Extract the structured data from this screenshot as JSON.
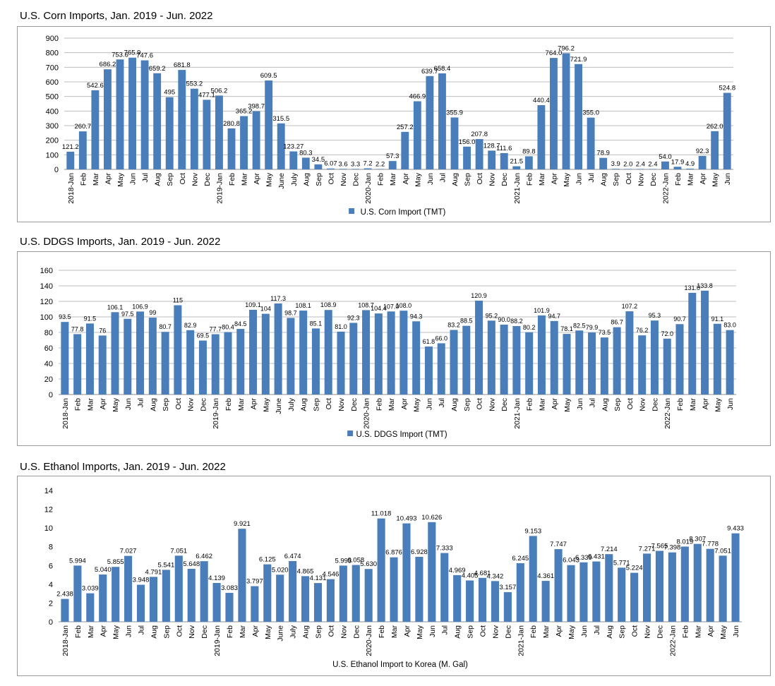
{
  "colors": {
    "bar": "#4a7ebb",
    "grid": "#bdbdbd",
    "axis": "#8c8c8c"
  },
  "months": [
    "2018-Jan",
    "Feb",
    "Mar",
    "Apr",
    "May",
    "Jun",
    "Jul",
    "Aug",
    "Sep",
    "Oct",
    "Nov",
    "Dec",
    "2019-Jan",
    "Feb",
    "Mar",
    "Apr",
    "May",
    "June",
    "July",
    "Aug",
    "Sep",
    "Oct",
    "Nov",
    "Dec",
    "2020-Jan",
    "Feb",
    "Mar",
    "Apr",
    "May",
    "Jun",
    "Jul",
    "Aug",
    "Sep",
    "Oct",
    "Nov",
    "Dec",
    "2021-Jan",
    "Feb",
    "Mar",
    "Apr",
    "May",
    "Jun",
    "Jul",
    "Aug",
    "Sep",
    "Oct",
    "Nov",
    "Dec",
    "2022-Jan",
    "Feb",
    "Mar",
    "Apr",
    "May",
    "Jun"
  ],
  "chart_data": [
    {
      "type": "bar",
      "title": "U.S. Corn Imports, Jan. 2019 - Jun. 2022",
      "legend": "U.S. Corn Import (TMT)",
      "legend_position": "bottom",
      "legend_marker": true,
      "ylim": [
        0,
        900
      ],
      "yticks": [
        0,
        100,
        200,
        300,
        400,
        500,
        600,
        700,
        800,
        900
      ],
      "grid": true,
      "categories_ref": "months",
      "values": [
        121.2,
        260.7,
        542.6,
        686.2,
        753.6,
        765.9,
        747.6,
        659.2,
        495,
        681.8,
        553.2,
        477.1,
        506.2,
        280.8,
        365.2,
        398.7,
        609.5,
        315.5,
        123.27,
        80.3,
        34.5,
        6.07,
        3.6,
        3.3,
        7.2,
        2.2,
        57.3,
        257.2,
        466.9,
        639.7,
        658.4,
        355.9,
        156.0,
        207.8,
        128.7,
        111.6,
        21.5,
        89.8,
        440.4,
        764.0,
        796.2,
        721.9,
        355.0,
        78.9,
        3.9,
        2.0,
        2.4,
        2.4,
        54.0,
        17.9,
        4.9,
        92.3,
        262.0,
        524.8
      ],
      "data_labels": [
        "121.2",
        "260.7",
        "542.6",
        "686.2",
        "753.6",
        "765.9",
        "747.6",
        "659.2",
        "495",
        "681.8",
        "553.2",
        "477.1",
        "506.2",
        "280.8",
        "365.2",
        "398.7",
        "609.5",
        "315.5",
        "123.27",
        "80.3",
        "34.5",
        "6.07",
        "3.6",
        "3.3",
        "7.2",
        "2.2",
        "57.3",
        "257.2",
        "466.9",
        "639.7",
        "658.4",
        "355.9",
        "156.0",
        "207.8",
        "128.7",
        "111.6",
        "21.5",
        "89.8",
        "440.4",
        "764.0",
        "796.2",
        "721.9",
        "355.0",
        "78.9",
        "3.9",
        "2.0",
        "2.4",
        "2.4",
        "54.0",
        "17.9",
        "4.9",
        "92.3",
        "262.0",
        "524.8"
      ]
    },
    {
      "type": "bar",
      "title": "U.S. DDGS Imports, Jan. 2019 - Jun. 2022",
      "legend": "U.S. DDGS Import (TMT)",
      "legend_position": "bottom",
      "legend_marker": true,
      "ylim": [
        0,
        160
      ],
      "yticks": [
        0,
        20,
        40,
        60,
        80,
        100,
        120,
        140,
        160
      ],
      "grid": true,
      "categories_ref": "months",
      "values": [
        93.5,
        77.8,
        91.5,
        76,
        106.1,
        97.5,
        106.9,
        99,
        80.7,
        115,
        82.9,
        69.5,
        77.7,
        80.4,
        84.5,
        109.1,
        104,
        117.3,
        98.7,
        108.1,
        85.1,
        108.9,
        81.0,
        92.3,
        108.7,
        104.4,
        107.0,
        108.0,
        94.3,
        61.8,
        66.0,
        83.2,
        88.5,
        120.9,
        95.2,
        90.0,
        88.2,
        80.2,
        101.9,
        94.7,
        78.1,
        82.5,
        79.9,
        73.5,
        86.7,
        107.2,
        76.2,
        95.3,
        72.0,
        90.7,
        131.0,
        133.8,
        91.1,
        83.0
      ],
      "data_labels": [
        "93.5",
        "77.8",
        "91.5",
        "76",
        "106.1",
        "97.5",
        "106.9",
        "99",
        "80.7",
        "115",
        "82.9",
        "69.5",
        "77.7",
        "80.4",
        "84.5",
        "109.1",
        "104",
        "117.3",
        "98.7",
        "108.1",
        "85.1",
        "108.9",
        "81.0",
        "92.3",
        "108.7",
        "104.4",
        "107.0",
        "108.0",
        "94.3",
        "61.8",
        "66.0",
        "83.2",
        "88.5",
        "120.9",
        "95.2",
        "90.0",
        "88.2",
        "80.2",
        "101.9",
        "94.7",
        "78.1",
        "82.5",
        "79.9",
        "73.5",
        "86.7",
        "107.2",
        "76.2",
        "95.3",
        "72.0",
        "90.7",
        "131.0",
        "133.8",
        "91.1",
        "83.0"
      ]
    },
    {
      "type": "bar",
      "title": "U.S. Ethanol Imports, Jan. 2019 - Jun. 2022",
      "legend": "U.S. Ethanol Import to Korea (M. Gal)",
      "legend_position": "bottom",
      "legend_marker": false,
      "ylim": [
        0,
        14
      ],
      "yticks": [
        0,
        2,
        4,
        6,
        8,
        10,
        12,
        14
      ],
      "grid": false,
      "categories_ref": "months",
      "values": [
        2.438,
        5.994,
        3.039,
        5.04,
        5.855,
        7.027,
        3.948,
        4.791,
        5.541,
        7.051,
        5.648,
        6.462,
        4.139,
        3.083,
        9.921,
        3.797,
        6.125,
        5.02,
        6.474,
        4.865,
        4.131,
        4.546,
        5.993,
        6.058,
        5.63,
        11.018,
        6.876,
        10.493,
        6.928,
        10.626,
        7.333,
        4.969,
        4.405,
        4.681,
        4.342,
        3.157,
        6.245,
        9.153,
        4.361,
        7.747,
        6.043,
        6.339,
        6.431,
        7.214,
        5.771,
        5.224,
        7.271,
        7.565,
        7.398,
        8.019,
        8.307,
        7.778,
        7.051,
        9.433
      ],
      "data_labels": [
        "2.438",
        "5.994",
        "3.039",
        "5.040",
        "5.855",
        "7.027",
        "3.948",
        "4.791",
        "5.541",
        "7.051",
        "5.648",
        "6.462",
        "4.139",
        "3.083",
        "9.921",
        "3.797",
        "6.125",
        "5.020",
        "6.474",
        "4.865",
        "4.131",
        "4.546",
        "5.993",
        "6.058",
        "5.630",
        "11.018",
        "6.876",
        "10.493",
        "6.928",
        "10.626",
        "7.333",
        "4.969",
        "4.405",
        "4.681",
        "4.342",
        "3.157",
        "6.245",
        "9.153",
        "4.361",
        "7.747",
        "6.043",
        "6.339",
        "6.431",
        "7.214",
        "5.771",
        "5.224",
        "7.271",
        "7.565",
        "7.398",
        "8.019",
        "8.307",
        "7.778",
        "7.051",
        "9.433"
      ]
    }
  ]
}
